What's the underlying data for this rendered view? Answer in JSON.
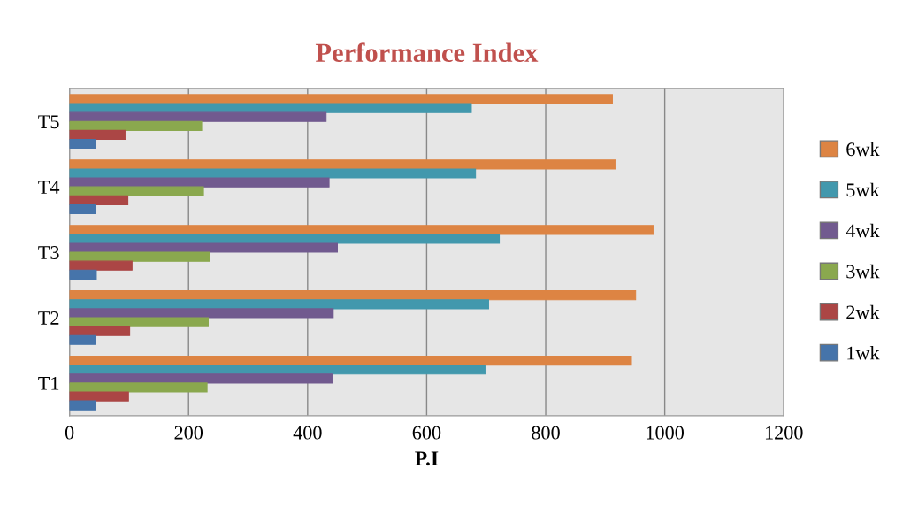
{
  "chart_data": {
    "type": "bar",
    "orientation": "horizontal",
    "title": "Performance Index",
    "xlabel": "P.I",
    "categories": [
      "T5",
      "T4",
      "T3",
      "T2",
      "T1"
    ],
    "series": [
      {
        "name": "6wk",
        "color": "#dd8443",
        "values": [
          912,
          917,
          981,
          951,
          944
        ]
      },
      {
        "name": "5wk",
        "color": "#4298ad",
        "values": [
          675,
          682,
          722,
          704,
          698
        ]
      },
      {
        "name": "4wk",
        "color": "#715a8f",
        "values": [
          431,
          436,
          450,
          443,
          441
        ]
      },
      {
        "name": "3wk",
        "color": "#8aa84e",
        "values": [
          222,
          225,
          236,
          233,
          231
        ]
      },
      {
        "name": "2wk",
        "color": "#ab4645",
        "values": [
          94,
          98,
          105,
          101,
          99
        ]
      },
      {
        "name": "1wk",
        "color": "#4674aa",
        "values": [
          43,
          43,
          45,
          43,
          43
        ]
      }
    ],
    "xlim": [
      0,
      1200
    ],
    "xticks": [
      0,
      200,
      400,
      600,
      800,
      1000,
      1200
    ],
    "grid": "x",
    "legend": "right"
  }
}
